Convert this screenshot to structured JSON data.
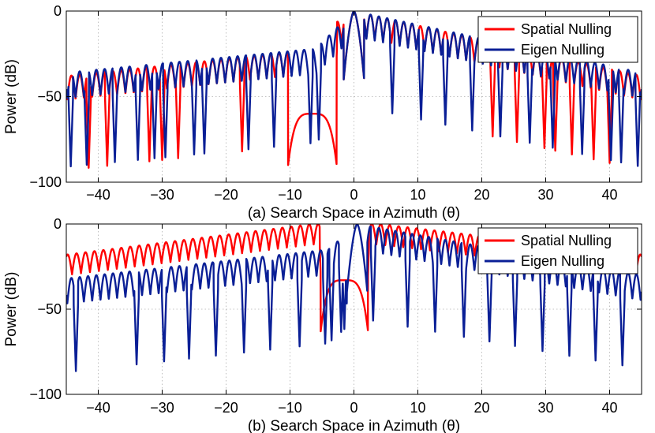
{
  "chart_data": [
    {
      "type": "line",
      "xlabel": "(a) Search Space in Azimuth (θ)",
      "ylabel": "Power (dB)",
      "xlim": [
        -45,
        45
      ],
      "ylim": [
        -100,
        0
      ],
      "xticks": [
        -40,
        -30,
        -20,
        -10,
        0,
        10,
        20,
        30,
        40
      ],
      "yticks": [
        0,
        -50,
        -100
      ],
      "xtick_labels": [
        "−40",
        "−30",
        "−20",
        "−10",
        "0",
        "10",
        "20",
        "30",
        "40"
      ],
      "ytick_labels": [
        "0",
        "−50",
        "−100"
      ],
      "grid": true,
      "legend_position": "top-right",
      "series": [
        {
          "name": "Spatial Nulling",
          "color": "#ff0000",
          "mainlobe_center": 0,
          "mainlobe_width": 1.6,
          "sidelobe_peaks": [
            [
              -45,
              -38
            ],
            [
              -10,
              -24
            ],
            [
              0,
              0
            ],
            [
              45,
              -38
            ]
          ],
          "trough_depth_db": -14,
          "lobe_period": 1.3,
          "nulls": [
            -41.5,
            -38.6,
            -32,
            -30,
            -27.5,
            -17.5,
            -9.5,
            -3,
            21.7,
            25.5,
            29.8,
            31.5,
            34.1,
            37.5,
            40
          ],
          "notch": {
            "start": -10.3,
            "end": -2.7,
            "level": -60,
            "edges": [
              -9.5,
              -3
            ]
          }
        },
        {
          "name": "Eigen Nulling",
          "color": "#0a1f96",
          "mainlobe_center": 0,
          "mainlobe_width": 1.6,
          "sidelobe_peaks": [
            [
              -45,
              -36
            ],
            [
              -6,
              -22
            ],
            [
              0,
              0
            ],
            [
              45,
              -36
            ]
          ],
          "trough_depth_db": -15,
          "lobe_period": 1.3,
          "nulls": [
            -44.3,
            -41.8,
            -37.4,
            -33.8,
            -31.2,
            -29.5,
            -25,
            -23.4,
            -16.5,
            -12.5,
            -6.8,
            -5.5,
            6,
            10.5,
            14.3,
            18.5,
            22.9,
            27.5,
            31.1,
            35.7,
            40.2,
            41.8,
            44.4
          ],
          "notch": null
        }
      ]
    },
    {
      "type": "line",
      "xlabel": "(b) Search Space in Azimuth (θ)",
      "ylabel": "Power (dB)",
      "xlim": [
        -45,
        45
      ],
      "ylim": [
        -100,
        0
      ],
      "xticks": [
        -40,
        -30,
        -20,
        -10,
        0,
        10,
        20,
        30,
        40
      ],
      "yticks": [
        0,
        -50,
        -100
      ],
      "xtick_labels": [
        "−40",
        "−30",
        "−20",
        "−10",
        "0",
        "10",
        "20",
        "30",
        "40"
      ],
      "ytick_labels": [
        "0",
        "−50",
        "−100"
      ],
      "grid": true,
      "legend_position": "top-right",
      "series": [
        {
          "name": "Spatial Nulling",
          "color": "#ff0000",
          "mainlobe_center": null,
          "mainlobe_width": 1.6,
          "sidelobe_peaks": [
            [
              -45,
              -18
            ],
            [
              -6.5,
              0
            ],
            [
              4,
              0
            ],
            [
              45,
              -18
            ]
          ],
          "trough_depth_db": -12,
          "lobe_period": 1.4,
          "nulls": [
            -5,
            2
          ],
          "notch": {
            "start": -5.2,
            "end": 2.2,
            "level": -33,
            "edges": [
              -5,
              2
            ]
          }
        },
        {
          "name": "Eigen Nulling",
          "color": "#0a1f96",
          "mainlobe_center": 0.5,
          "mainlobe_width": 1.6,
          "sidelobe_peaks": [
            [
              -45,
              -32
            ],
            [
              -4,
              -15
            ],
            [
              0.5,
              0
            ],
            [
              45,
              -30
            ]
          ],
          "trough_depth_db": -15,
          "lobe_period": 1.3,
          "nulls": [
            -43.5,
            -34,
            -29.7,
            -25.8,
            -21.6,
            -17.2,
            -13.1,
            -8.5,
            -4.5,
            -3.5,
            -2,
            -1.5,
            -1,
            3,
            8.4,
            12.7,
            17.2,
            21.2,
            25.2,
            29.5,
            33.7,
            37.8,
            42
          ],
          "notch": null
        }
      ]
    }
  ]
}
